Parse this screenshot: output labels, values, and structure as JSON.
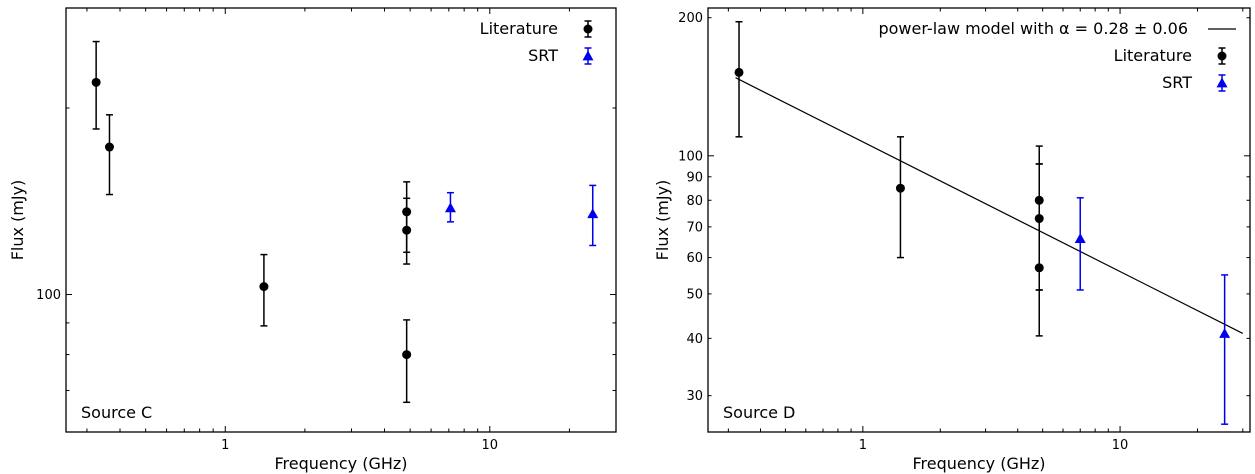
{
  "chart_data": [
    {
      "type": "scatter",
      "title": "",
      "annotation": "Source C",
      "xlabel": "Frequency (GHz)",
      "ylabel": "Flux (mJy)",
      "xscale": "log",
      "yscale": "log",
      "xlim": [
        0.25,
        30
      ],
      "ylim": [
        60,
        290
      ],
      "xticks": [
        {
          "value": 1,
          "label": "1"
        },
        {
          "value": 10,
          "label": "10"
        }
      ],
      "yticks": [
        {
          "value": 100,
          "label": "100"
        }
      ],
      "legend_placement": "top-right",
      "grid": false,
      "series": [
        {
          "name": "Literature",
          "color": "#000000",
          "marker": "circle",
          "points": [
            {
              "x": 0.325,
              "y": 220,
              "ylo": 185,
              "yhi": 256
            },
            {
              "x": 0.365,
              "y": 173,
              "ylo": 145,
              "yhi": 195
            },
            {
              "x": 1.4,
              "y": 103,
              "ylo": 89,
              "yhi": 116
            },
            {
              "x": 4.85,
              "y": 136,
              "ylo": 117,
              "yhi": 152
            },
            {
              "x": 4.85,
              "y": 127,
              "ylo": 112,
              "yhi": 143
            },
            {
              "x": 4.85,
              "y": 80,
              "ylo": 67,
              "yhi": 91
            }
          ]
        },
        {
          "name": "SRT",
          "color": "#0000ee",
          "marker": "triangle",
          "points": [
            {
              "x": 7.1,
              "y": 138,
              "ylo": 131,
              "yhi": 146
            },
            {
              "x": 24.5,
              "y": 135,
              "ylo": 120,
              "yhi": 150
            }
          ]
        }
      ]
    },
    {
      "type": "scatter",
      "title": "",
      "annotation": "Source D",
      "xlabel": "Frequency (GHz)",
      "ylabel": "Flux (mJy)",
      "xscale": "log",
      "yscale": "log",
      "xlim": [
        0.25,
        32
      ],
      "ylim": [
        25,
        210
      ],
      "xticks": [
        {
          "value": 1,
          "label": "1"
        },
        {
          "value": 10,
          "label": "10"
        }
      ],
      "yticks": [
        {
          "value": 30,
          "label": "30"
        },
        {
          "value": 40,
          "label": "40"
        },
        {
          "value": 50,
          "label": "50"
        },
        {
          "value": 60,
          "label": "60"
        },
        {
          "value": 70,
          "label": "70"
        },
        {
          "value": 80,
          "label": "80"
        },
        {
          "value": 90,
          "label": "90"
        },
        {
          "value": 100,
          "label": "100"
        },
        {
          "value": 200,
          "label": "200"
        }
      ],
      "legend_placement": "top-right",
      "grid": false,
      "model": {
        "name": "power-law model  with α = 0.28 ± 0.06",
        "color": "#000000",
        "x": [
          0.32,
          30
        ],
        "y": [
          148,
          41
        ]
      },
      "series": [
        {
          "name": "Literature",
          "color": "#000000",
          "marker": "circle",
          "points": [
            {
              "x": 0.33,
              "y": 152,
              "ylo": 110,
              "yhi": 196
            },
            {
              "x": 1.4,
              "y": 85,
              "ylo": 60,
              "yhi": 110
            },
            {
              "x": 4.85,
              "y": 80,
              "ylo": 51,
              "yhi": 96
            },
            {
              "x": 4.85,
              "y": 73,
              "ylo": 51,
              "yhi": 96
            },
            {
              "x": 4.85,
              "y": 57,
              "ylo": 40.5,
              "yhi": 105
            }
          ]
        },
        {
          "name": "SRT",
          "color": "#0000ee",
          "marker": "triangle",
          "points": [
            {
              "x": 7.0,
              "y": 66,
              "ylo": 51,
              "yhi": 81
            },
            {
              "x": 25.5,
              "y": 41,
              "ylo": 26,
              "yhi": 55
            }
          ]
        }
      ]
    }
  ]
}
